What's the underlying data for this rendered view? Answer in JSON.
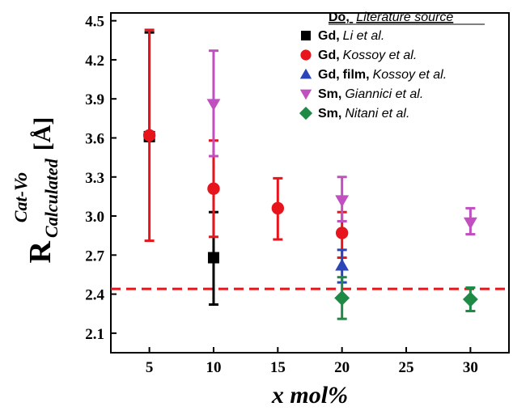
{
  "chart_data": {
    "type": "scatter",
    "xlabel": "x mol%",
    "ylabel": {
      "main": "R",
      "superscript": "Cat-Vo",
      "subscript": "Calculated",
      "unit": "[Å]"
    },
    "xlim": [
      2,
      33
    ],
    "ylim": [
      1.95,
      4.56
    ],
    "x_ticks": [
      5,
      10,
      15,
      20,
      25,
      30
    ],
    "y_ticks": [
      2.1,
      2.4,
      2.7,
      3.0,
      3.3,
      3.6,
      3.9,
      4.2,
      4.5
    ],
    "y_tick_labels": [
      "2.1",
      "2.4",
      "2.7",
      "3.0",
      "3.3",
      "3.6",
      "3.9",
      "4.2",
      "4.5"
    ],
    "grid": false,
    "legend_position": "top-right",
    "legend_title": {
      "bold": "Do,",
      "italic": "Literature source"
    },
    "series": [
      {
        "name": "Li et al.",
        "dopant": "Gd",
        "extra": "",
        "author": "Li et al.",
        "marker": "square",
        "color": "#000000",
        "points": [
          {
            "x": 5,
            "y": 3.61,
            "lo": 3.61,
            "hi": 4.41
          },
          {
            "x": 10,
            "y": 2.68,
            "lo": 2.32,
            "hi": 3.03
          }
        ]
      },
      {
        "name": "Kossoy et al.",
        "dopant": "Gd",
        "extra": "",
        "author": "Kossoy et al.",
        "marker": "circle",
        "color": "#e8141c",
        "points": [
          {
            "x": 5,
            "y": 3.62,
            "lo": 2.81,
            "hi": 4.43
          },
          {
            "x": 10,
            "y": 3.21,
            "lo": 2.84,
            "hi": 3.58
          },
          {
            "x": 15,
            "y": 3.06,
            "lo": 2.82,
            "hi": 3.29
          },
          {
            "x": 20,
            "y": 2.87,
            "lo": 2.68,
            "hi": 3.03
          }
        ]
      },
      {
        "name": "film, Kossoy et al.",
        "dopant": "Gd",
        "extra": "film",
        "author": "Kossoy et al.",
        "marker": "triangle-up",
        "color": "#2b45b8",
        "points": [
          {
            "x": 20,
            "y": 2.62,
            "lo": 2.49,
            "hi": 2.74
          }
        ]
      },
      {
        "name": "Giannici et al.",
        "dopant": "Sm",
        "extra": "",
        "author": "Giannici et al.",
        "marker": "triangle-down",
        "color": "#c04fc0",
        "points": [
          {
            "x": 10,
            "y": 3.86,
            "lo": 3.46,
            "hi": 4.27
          },
          {
            "x": 20,
            "y": 3.12,
            "lo": 2.96,
            "hi": 3.3
          },
          {
            "x": 30,
            "y": 2.95,
            "lo": 2.86,
            "hi": 3.06
          }
        ]
      },
      {
        "name": "Nitani et al.",
        "dopant": "Sm",
        "extra": "",
        "author": "Nitani et al.",
        "marker": "diamond",
        "color": "#1f8a45",
        "points": [
          {
            "x": 20,
            "y": 2.37,
            "lo": 2.21,
            "hi": 2.53
          },
          {
            "x": 30,
            "y": 2.36,
            "lo": 2.27,
            "hi": 2.45
          }
        ]
      }
    ],
    "reference_line": {
      "y": 2.44,
      "color": "#e8141c",
      "style": "dashed"
    }
  }
}
